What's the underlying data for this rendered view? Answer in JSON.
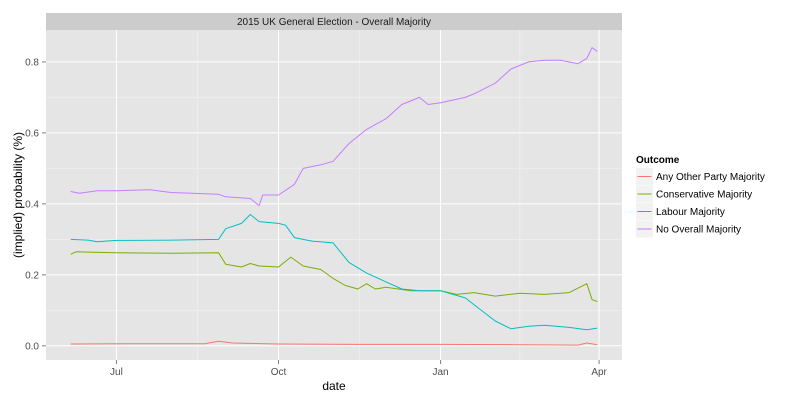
{
  "chart_data": {
    "type": "line",
    "title": "2015 UK General Election - Overall Majority",
    "xlabel": "date",
    "ylabel": "(implied) probability (%)",
    "x_ticks": [
      {
        "label": "Jul",
        "date": "2014-07-01"
      },
      {
        "label": "Oct",
        "date": "2014-10-01"
      },
      {
        "label": "Jan",
        "date": "2015-01-01"
      },
      {
        "label": "Apr",
        "date": "2015-04-01"
      }
    ],
    "y_ticks": [
      0.0,
      0.2,
      0.4,
      0.6,
      0.8
    ],
    "y_tick_labels": [
      "0.0",
      "0.2",
      "0.4",
      "0.6",
      "0.8"
    ],
    "xlim": [
      "2014-05-22",
      "2015-04-14"
    ],
    "ylim": [
      -0.04,
      0.89
    ],
    "grid": true,
    "legend": {
      "title": "Outcome",
      "position": "right"
    },
    "series": [
      {
        "name": "Any Other Party Majority",
        "color": "#F8766D",
        "points": [
          [
            "2014-06-05",
            0.005
          ],
          [
            "2014-07-10",
            0.006
          ],
          [
            "2014-08-20",
            0.006
          ],
          [
            "2014-08-28",
            0.013
          ],
          [
            "2014-09-05",
            0.008
          ],
          [
            "2014-10-01",
            0.005
          ],
          [
            "2014-11-15",
            0.004
          ],
          [
            "2015-01-01",
            0.004
          ],
          [
            "2015-02-15",
            0.003
          ],
          [
            "2015-03-20",
            0.002
          ],
          [
            "2015-03-25",
            0.008
          ],
          [
            "2015-03-31",
            0.003
          ]
        ]
      },
      {
        "name": "Conservative Majority",
        "color": "#7CAE00",
        "points": [
          [
            "2014-06-05",
            0.258
          ],
          [
            "2014-06-08",
            0.265
          ],
          [
            "2014-06-15",
            0.264
          ],
          [
            "2014-07-01",
            0.262
          ],
          [
            "2014-08-01",
            0.261
          ],
          [
            "2014-08-28",
            0.262
          ],
          [
            "2014-09-01",
            0.23
          ],
          [
            "2014-09-10",
            0.222
          ],
          [
            "2014-09-15",
            0.232
          ],
          [
            "2014-09-20",
            0.225
          ],
          [
            "2014-10-01",
            0.222
          ],
          [
            "2014-10-08",
            0.25
          ],
          [
            "2014-10-15",
            0.225
          ],
          [
            "2014-10-25",
            0.215
          ],
          [
            "2014-11-01",
            0.19
          ],
          [
            "2014-11-08",
            0.17
          ],
          [
            "2014-11-15",
            0.16
          ],
          [
            "2014-11-20",
            0.175
          ],
          [
            "2014-11-25",
            0.16
          ],
          [
            "2014-12-01",
            0.165
          ],
          [
            "2014-12-15",
            0.155
          ],
          [
            "2015-01-01",
            0.155
          ],
          [
            "2015-01-10",
            0.145
          ],
          [
            "2015-01-20",
            0.15
          ],
          [
            "2015-02-01",
            0.14
          ],
          [
            "2015-02-15",
            0.148
          ],
          [
            "2015-03-01",
            0.145
          ],
          [
            "2015-03-15",
            0.15
          ],
          [
            "2015-03-25",
            0.175
          ],
          [
            "2015-03-28",
            0.13
          ],
          [
            "2015-03-31",
            0.125
          ]
        ]
      },
      {
        "name": "Labour Majority",
        "color": "#00BFC4",
        "points": [
          [
            "2014-06-05",
            0.3
          ],
          [
            "2014-06-15",
            0.298
          ],
          [
            "2014-06-20",
            0.293
          ],
          [
            "2014-07-01",
            0.297
          ],
          [
            "2014-08-01",
            0.298
          ],
          [
            "2014-08-28",
            0.3
          ],
          [
            "2014-09-01",
            0.33
          ],
          [
            "2014-09-10",
            0.345
          ],
          [
            "2014-09-15",
            0.37
          ],
          [
            "2014-09-20",
            0.35
          ],
          [
            "2014-10-01",
            0.345
          ],
          [
            "2014-10-05",
            0.34
          ],
          [
            "2014-10-10",
            0.305
          ],
          [
            "2014-10-20",
            0.295
          ],
          [
            "2014-11-01",
            0.29
          ],
          [
            "2014-11-10",
            0.235
          ],
          [
            "2014-11-20",
            0.205
          ],
          [
            "2014-12-01",
            0.18
          ],
          [
            "2014-12-10",
            0.16
          ],
          [
            "2014-12-20",
            0.155
          ],
          [
            "2015-01-01",
            0.155
          ],
          [
            "2015-01-15",
            0.135
          ],
          [
            "2015-02-01",
            0.07
          ],
          [
            "2015-02-10",
            0.048
          ],
          [
            "2015-02-20",
            0.055
          ],
          [
            "2015-03-01",
            0.058
          ],
          [
            "2015-03-15",
            0.052
          ],
          [
            "2015-03-25",
            0.045
          ],
          [
            "2015-03-31",
            0.05
          ]
        ]
      },
      {
        "name": "No Overall Majority",
        "color": "#C77CFF",
        "points": [
          [
            "2014-06-05",
            0.435
          ],
          [
            "2014-06-10",
            0.43
          ],
          [
            "2014-06-20",
            0.437
          ],
          [
            "2014-07-01",
            0.437
          ],
          [
            "2014-07-20",
            0.44
          ],
          [
            "2014-08-01",
            0.432
          ],
          [
            "2014-08-28",
            0.427
          ],
          [
            "2014-09-01",
            0.42
          ],
          [
            "2014-09-15",
            0.415
          ],
          [
            "2014-09-20",
            0.395
          ],
          [
            "2014-09-22",
            0.425
          ],
          [
            "2014-10-01",
            0.425
          ],
          [
            "2014-10-10",
            0.455
          ],
          [
            "2014-10-15",
            0.5
          ],
          [
            "2014-10-25",
            0.51
          ],
          [
            "2014-11-01",
            0.52
          ],
          [
            "2014-11-10",
            0.57
          ],
          [
            "2014-11-20",
            0.61
          ],
          [
            "2014-12-01",
            0.64
          ],
          [
            "2014-12-10",
            0.68
          ],
          [
            "2014-12-20",
            0.7
          ],
          [
            "2014-12-25",
            0.68
          ],
          [
            "2015-01-01",
            0.685
          ],
          [
            "2015-01-15",
            0.7
          ],
          [
            "2015-01-20",
            0.71
          ],
          [
            "2015-02-01",
            0.74
          ],
          [
            "2015-02-10",
            0.78
          ],
          [
            "2015-02-20",
            0.8
          ],
          [
            "2015-03-01",
            0.805
          ],
          [
            "2015-03-10",
            0.805
          ],
          [
            "2015-03-20",
            0.795
          ],
          [
            "2015-03-25",
            0.81
          ],
          [
            "2015-03-28",
            0.84
          ],
          [
            "2015-03-31",
            0.83
          ]
        ]
      }
    ]
  }
}
